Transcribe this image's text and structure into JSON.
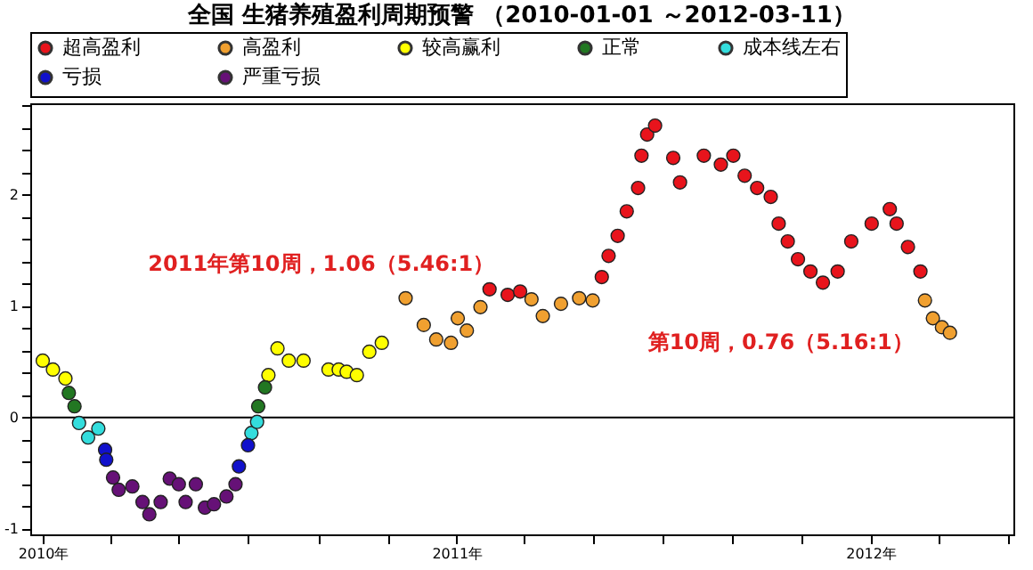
{
  "chart_data": {
    "type": "scatter",
    "title": "全国 生猪养殖盈利周期预警 （2010-01-01 ～2012-03-11）",
    "series": [
      {
        "name": "超高盈利",
        "color": "#e8141c",
        "x": [
          "2011-01-30",
          "2011-02-15",
          "2011-02-26",
          "2011-05-09",
          "2011-05-15",
          "2011-05-23",
          "2011-05-31",
          "2011-06-10",
          "2011-06-13",
          "2011-06-18",
          "2011-06-25",
          "2011-07-11",
          "2011-07-17",
          "2011-08-07",
          "2011-08-22",
          "2011-09-02",
          "2011-09-12",
          "2011-09-23",
          "2011-10-05",
          "2011-10-12",
          "2011-10-20",
          "2011-10-29",
          "2011-11-09",
          "2011-11-20",
          "2011-12-03",
          "2011-12-15",
          "2012-01-02",
          "2012-01-18",
          "2012-01-24",
          "2012-02-03",
          "2012-02-14"
        ],
        "values": [
          1.15,
          1.1,
          1.13,
          1.26,
          1.45,
          1.63,
          1.85,
          2.06,
          2.35,
          2.54,
          2.62,
          2.33,
          2.11,
          2.35,
          2.27,
          2.35,
          2.17,
          2.06,
          1.98,
          1.74,
          1.58,
          1.42,
          1.31,
          1.21,
          1.31,
          1.58,
          1.74,
          1.87,
          1.74,
          1.53,
          1.31
        ]
      },
      {
        "name": "高盈利",
        "color": "#f0a030",
        "x": [
          "2010-11-17",
          "2010-12-03",
          "2010-12-14",
          "2010-12-27",
          "2011-01-02",
          "2011-01-10",
          "2011-01-22",
          "2011-03-08",
          "2011-03-18",
          "2011-04-03",
          "2011-04-19",
          "2011-05-01",
          "2012-02-18",
          "2012-02-25",
          "2012-03-04",
          "2012-03-11"
        ],
        "values": [
          1.07,
          0.83,
          0.7,
          0.67,
          0.89,
          0.78,
          0.99,
          1.06,
          0.91,
          1.02,
          1.07,
          1.05,
          1.05,
          0.89,
          0.81,
          0.76
        ]
      },
      {
        "name": "较高赢利",
        "color": "#ffff00",
        "x": [
          "2010-01-01",
          "2010-01-10",
          "2010-01-21",
          "2010-07-19",
          "2010-07-27",
          "2010-08-06",
          "2010-08-19",
          "2010-09-10",
          "2010-09-19",
          "2010-09-26",
          "2010-10-05",
          "2010-10-16",
          "2010-10-27"
        ],
        "values": [
          0.51,
          0.43,
          0.35,
          0.38,
          0.62,
          0.51,
          0.51,
          0.43,
          0.43,
          0.41,
          0.38,
          0.59,
          0.67
        ]
      },
      {
        "name": "正常",
        "color": "#227722",
        "x": [
          "2010-01-24",
          "2010-01-29",
          "2010-07-10",
          "2010-07-16"
        ],
        "values": [
          0.22,
          0.1,
          0.1,
          0.27
        ]
      },
      {
        "name": "成本线左右",
        "color": "#33dddd",
        "x": [
          "2010-02-02",
          "2010-02-10",
          "2010-02-19",
          "2010-07-04",
          "2010-07-09"
        ],
        "values": [
          -0.05,
          -0.18,
          -0.1,
          -0.14,
          -0.04
        ]
      },
      {
        "name": "亏损",
        "color": "#1111cc",
        "x": [
          "2010-02-25",
          "2010-02-26",
          "2010-06-23",
          "2010-07-01"
        ],
        "values": [
          -0.29,
          -0.38,
          -0.44,
          -0.25
        ]
      },
      {
        "name": "严重亏损",
        "color": "#661177",
        "x": [
          "2010-03-04",
          "2010-03-09",
          "2010-03-21",
          "2010-03-30",
          "2010-04-05",
          "2010-04-15",
          "2010-04-23",
          "2010-05-01",
          "2010-05-07",
          "2010-05-16",
          "2010-05-24",
          "2010-06-01",
          "2010-06-12",
          "2010-06-20"
        ],
        "values": [
          -0.54,
          -0.65,
          -0.62,
          -0.76,
          -0.87,
          -0.76,
          -0.55,
          -0.6,
          -0.76,
          -0.6,
          -0.81,
          -0.78,
          -0.71,
          -0.6
        ]
      }
    ],
    "xlim": [
      "2009-12-21",
      "2012-05-06"
    ],
    "xticks": [
      {
        "value": "2010-01-01",
        "label": "2010年"
      },
      {
        "value": "2010-03-01",
        "label": null
      },
      {
        "value": "2010-05-01",
        "label": null
      },
      {
        "value": "2010-07-01",
        "label": null
      },
      {
        "value": "2010-09-01",
        "label": null
      },
      {
        "value": "2010-11-01",
        "label": null
      },
      {
        "value": "2011-01-01",
        "label": "2011年"
      },
      {
        "value": "2011-03-01",
        "label": null
      },
      {
        "value": "2011-05-01",
        "label": null
      },
      {
        "value": "2011-07-01",
        "label": null
      },
      {
        "value": "2011-09-01",
        "label": null
      },
      {
        "value": "2011-11-01",
        "label": null
      },
      {
        "value": "2012-01-01",
        "label": "2012年"
      },
      {
        "value": "2012-03-01",
        "label": null
      },
      {
        "value": "2012-05-01",
        "label": null
      }
    ],
    "ylim": [
      -1.05,
      2.82
    ],
    "yticks": [
      -1,
      {
        "value": -0.8,
        "label": null
      },
      {
        "value": -0.6,
        "label": null
      },
      {
        "value": -0.4,
        "label": null
      },
      {
        "value": -0.2,
        "label": null
      },
      0,
      {
        "value": 0.2,
        "label": null
      },
      {
        "value": 0.4,
        "label": null
      },
      {
        "value": 0.6,
        "label": null
      },
      {
        "value": 0.8,
        "label": null
      },
      1,
      {
        "value": 1.2,
        "label": null
      },
      {
        "value": 1.4,
        "label": null
      },
      {
        "value": 1.6,
        "label": null
      },
      {
        "value": 1.8,
        "label": null
      },
      2,
      {
        "value": 2.2,
        "label": null
      },
      {
        "value": 2.4,
        "label": null
      },
      {
        "value": 2.6,
        "label": null
      },
      {
        "value": 2.8,
        "label": null
      }
    ],
    "ref_lines": [
      {
        "axis": "y",
        "value": 0,
        "label": null,
        "color": "#000000"
      }
    ],
    "annotations": [
      {
        "text": "2011年第10周，1.06（5.46:1）",
        "x": "2011-03-08",
        "y": 1.06
      },
      {
        "text": "第10周，0.76（5.16:1）",
        "x": "2012-03-11",
        "y": 0.76
      }
    ],
    "marker": "circle",
    "grid": false,
    "legend": "top"
  }
}
